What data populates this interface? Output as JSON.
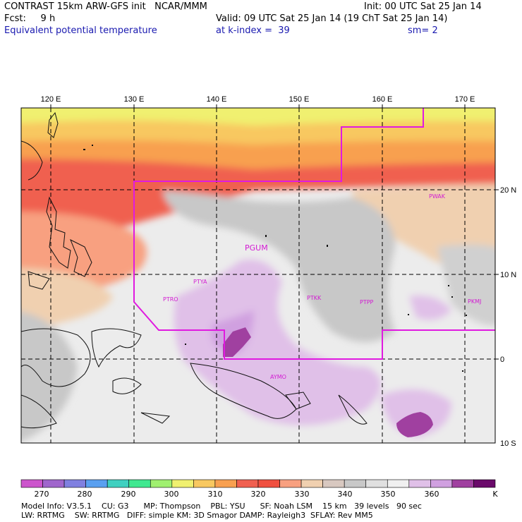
{
  "header": {
    "line1_left": "CONTRAST 15km ARW-GFS init   NCAR/MMM",
    "line1_right": "Init: 00 UTC Sat 25 Jan 14",
    "line2_left": "Fcst:     9 h",
    "line2_right": "Valid: 09 UTC Sat 25 Jan 14 (19 ChT Sat 25 Jan 14)",
    "line3_left": "Equivalent potential temperature",
    "line3_mid": "at k-index =  39",
    "line3_right": "sm= 2"
  },
  "map": {
    "lon_labels": [
      "120 E",
      "130 E",
      "140 E",
      "150 E",
      "160 E",
      "170 E"
    ],
    "lat_labels": [
      "20 N",
      "10 N",
      "0",
      "10 S"
    ],
    "stations": [
      "PGUM",
      "PTYA",
      "PTRO",
      "PTKK",
      "PTPP",
      "PKMJ",
      "PWAK",
      "AYMO"
    ]
  },
  "colorbar": {
    "labels": [
      "270",
      "280",
      "290",
      "300",
      "310",
      "320",
      "330",
      "340",
      "350",
      "360",
      "K"
    ],
    "colors": [
      "#cc55cc",
      "#a066cc",
      "#8080e0",
      "#5aa0f0",
      "#40d0c0",
      "#40e890",
      "#a0f070",
      "#f0f070",
      "#f8c860",
      "#f8a050",
      "#f06050",
      "#f05040",
      "#f8a080",
      "#f0d0b0",
      "#d8c8c0",
      "#c8c8c8",
      "#e0e0e0",
      "#f0f0f0",
      "#e0c0e8",
      "#d0a0e0",
      "#a040a0",
      "#6a0a6a"
    ]
  },
  "footer": {
    "line1": "Model Info: V3.5.1    CU: G3      MP: Thompson    PBL: YSU      SF: Noah LSM    15 km   39 levels   90 sec",
    "line2": "LW: RRTMG    SW: RRTMG   DIFF: simple KM: 3D Smagor DAMP: Rayleigh3  SFLAY: Rev MM5"
  }
}
